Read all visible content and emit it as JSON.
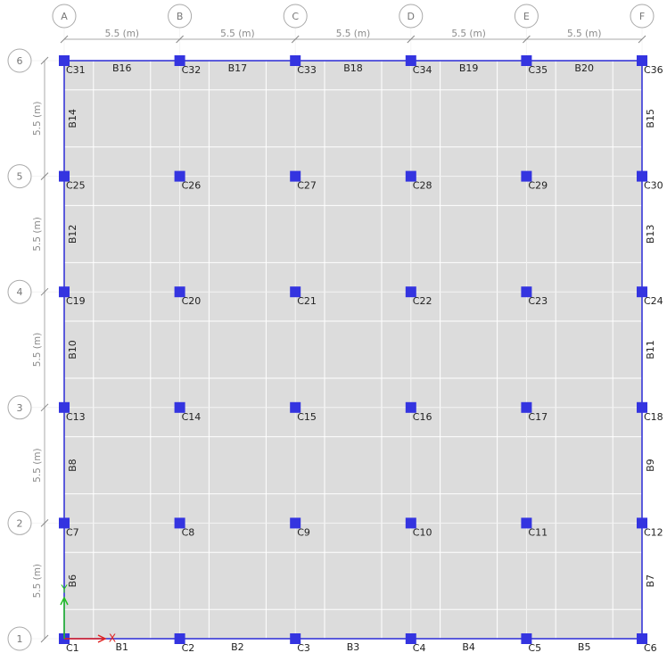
{
  "grid": {
    "x_labels": [
      "A",
      "B",
      "C",
      "D",
      "E",
      "F"
    ],
    "y_labels": [
      "1",
      "2",
      "3",
      "4",
      "5",
      "6"
    ],
    "x_dims": [
      "5.5 (m)",
      "5.5 (m)",
      "5.5 (m)",
      "5.5 (m)",
      "5.5 (m)"
    ],
    "y_dims": [
      "5.5 (m)",
      "5.5 (m)",
      "5.5 (m)",
      "5.5 (m)",
      "5.5 (m)"
    ]
  },
  "columns": [
    [
      "C1",
      "C2",
      "C3",
      "C4",
      "C5",
      "C6"
    ],
    [
      "C7",
      "C8",
      "C9",
      "C10",
      "C11",
      "C12"
    ],
    [
      "C13",
      "C14",
      "C15",
      "C16",
      "C17",
      "C18"
    ],
    [
      "C19",
      "C20",
      "C21",
      "C22",
      "C23",
      "C24"
    ],
    [
      "C25",
      "C26",
      "C27",
      "C28",
      "C29",
      "C30"
    ],
    [
      "C31",
      "C32",
      "C33",
      "C34",
      "C35",
      "C36"
    ]
  ],
  "beams": {
    "bottom": [
      "B1",
      "B2",
      "B3",
      "B4",
      "B5"
    ],
    "top": [
      "B16",
      "B17",
      "B18",
      "B19",
      "B20"
    ],
    "left": [
      "B6",
      "B8",
      "B10",
      "B12",
      "B14"
    ],
    "right": [
      "B7",
      "B9",
      "B11",
      "B13",
      "B15"
    ]
  },
  "axes": {
    "x": "X",
    "y": "Y"
  }
}
